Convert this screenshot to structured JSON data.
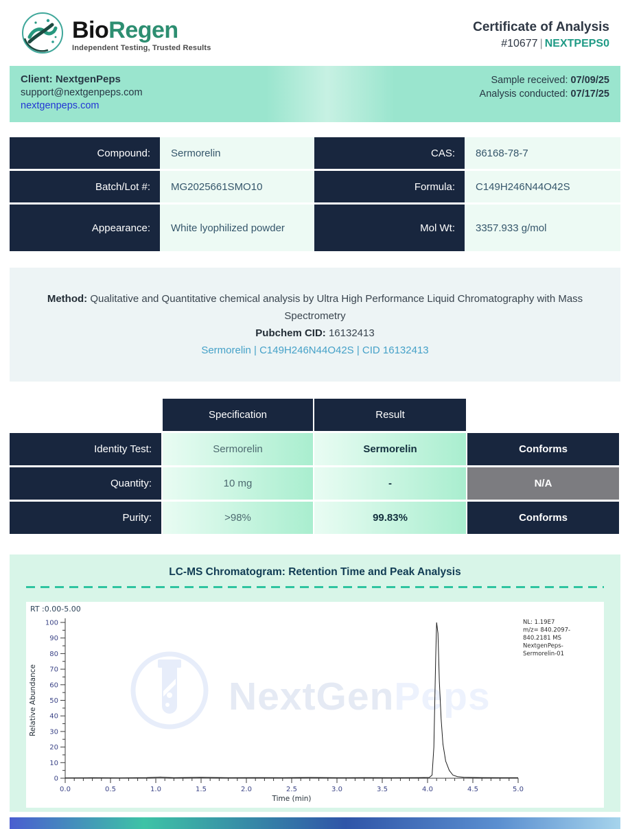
{
  "brand": {
    "name_part1": "Bio",
    "name_part2": "Regen",
    "tagline": "Independent Testing, Trusted Results"
  },
  "header": {
    "title": "Certificate of Analysis",
    "report_number": "#10677",
    "separator": "|",
    "client_code": "NEXTPEPS0"
  },
  "client_bar": {
    "client_label": "Client:",
    "client_name": "NextgenPeps",
    "email": "support@nextgenpeps.com",
    "website": "nextgenpeps.com",
    "sample_received_label": "Sample received:",
    "sample_received_date": "07/09/25",
    "analysis_conducted_label": "Analysis conducted:",
    "analysis_conducted_date": "07/17/25"
  },
  "compound_table": {
    "rows": [
      {
        "label_left": "Compound:",
        "value_left": "Sermorelin",
        "label_right": "CAS:",
        "value_right": "86168-78-7"
      },
      {
        "label_left": "Batch/Lot #:",
        "value_left": "MG2025661SMO10",
        "label_right": "Formula:",
        "value_right": "C149H246N44O42S"
      },
      {
        "label_left": "Appearance:",
        "value_left": "White lyophilized powder",
        "label_right": "Mol Wt:",
        "value_right": "3357.933 g/mol"
      }
    ]
  },
  "method": {
    "label": "Method:",
    "description": "Qualitative and Quantitative chemical analysis by Ultra High Performance Liquid Chromatography with Mass Spectrometry",
    "pubchem_label": "Pubchem CID:",
    "pubchem_cid": "16132413",
    "link_text": "Sermorelin | C149H246N44O42S | CID 16132413"
  },
  "results_table": {
    "col_headers": [
      "Specification",
      "Result"
    ],
    "rows": [
      {
        "label": "Identity Test:",
        "specification": "Sermorelin",
        "result": "Sermorelin",
        "status": "Conforms"
      },
      {
        "label": "Quantity:",
        "specification": "10 mg",
        "result": "-",
        "status": "N/A"
      },
      {
        "label": "Purity:",
        "specification": ">98%",
        "result": "99.83%",
        "status": "Conforms"
      }
    ]
  },
  "chromatogram": {
    "watermark_part1": "NextGen",
    "watermark_part2": "Peps"
  },
  "chart_data": {
    "type": "line",
    "title": "LC-MS Chromatogram: Retention Time and Peak Analysis",
    "rt_range_label": "RT :0.00-5.00",
    "xlabel": "Time (min)",
    "ylabel": "Relative Abundance",
    "xlim": [
      0.0,
      5.0
    ],
    "ylim": [
      0,
      100
    ],
    "x_major_step": 0.5,
    "x_minor_step": 0.1,
    "y_major_step": 10,
    "y_minor_step": 5,
    "x_tick_labels": [
      "0.0",
      "0.5",
      "1.0",
      "1.5",
      "2.0",
      "2.5",
      "3.0",
      "3.5",
      "4.0",
      "4.5",
      "5.0"
    ],
    "y_tick_labels": [
      0,
      10,
      20,
      30,
      40,
      50,
      60,
      70,
      80,
      90,
      100
    ],
    "legend_lines": [
      "NL: 1.19E7",
      "m/z= 840.2097-",
      "840.2181 MS",
      "NextgenPeps-",
      "Sermorelin-01"
    ],
    "peak_retention_time": 4.1,
    "peak_max_abundance": 100,
    "grid": false,
    "series": [
      {
        "name": "NextgenPeps-Sermorelin-01",
        "points": [
          [
            0,
            0.2
          ],
          [
            0.3,
            0.3
          ],
          [
            0.6,
            0.2
          ],
          [
            0.9,
            0.4
          ],
          [
            1.05,
            0.7
          ],
          [
            1.2,
            0.3
          ],
          [
            1.5,
            0.6
          ],
          [
            1.8,
            0.3
          ],
          [
            2.1,
            0.4
          ],
          [
            2.4,
            0.3
          ],
          [
            2.7,
            0.5
          ],
          [
            3.0,
            0.3
          ],
          [
            3.3,
            0.4
          ],
          [
            3.6,
            0.3
          ],
          [
            3.9,
            0.4
          ],
          [
            4.02,
            0.5
          ],
          [
            4.05,
            2
          ],
          [
            4.07,
            20
          ],
          [
            4.09,
            78
          ],
          [
            4.1,
            100
          ],
          [
            4.115,
            93
          ],
          [
            4.13,
            62
          ],
          [
            4.15,
            38
          ],
          [
            4.17,
            22
          ],
          [
            4.2,
            11
          ],
          [
            4.24,
            5
          ],
          [
            4.28,
            2
          ],
          [
            4.33,
            1
          ],
          [
            4.4,
            0.6
          ],
          [
            4.6,
            0.4
          ],
          [
            4.8,
            0.3
          ],
          [
            5.0,
            0.3
          ]
        ]
      }
    ]
  },
  "colors": {
    "accent_teal": "#1f9a85",
    "brand_green": "#2d8e71",
    "navy": "#18263e",
    "client_bar_mint": "#9ae5ce",
    "value_cell_mint": "#edfaf4",
    "method_panel_bg": "#edf4f5",
    "spec_cell_gradient": [
      "#e9fcf3",
      "#a9eecf"
    ],
    "na_gray": "#7c7c80",
    "chromatogram_panel_bg": "#d8f5e8",
    "dashed_line_teal": "#2fc4a0",
    "link_blue": "#2336d4",
    "pubchem_link_blue": "#45a1c8",
    "footer_gradient": [
      "#4a5ed0",
      "#3ec3a6",
      "#2f55a8",
      "#5b8fd0",
      "#a6d4ec"
    ]
  }
}
